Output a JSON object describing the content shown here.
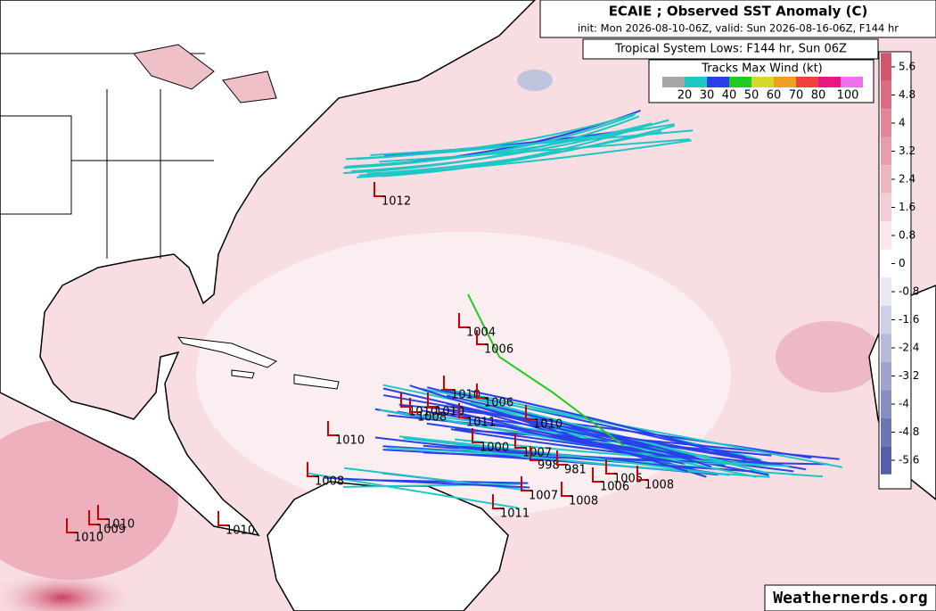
{
  "header": {
    "title": "ECAIE ; Observed SST Anomaly (C)",
    "subtitle": "init: Mon 2026-08-10-06Z, valid: Sun 2026-08-16-06Z, F144 hr"
  },
  "lows_legend": {
    "title": "Tropical System Lows: F144 hr, Sun 06Z"
  },
  "wind_legend": {
    "title": "Tracks Max Wind (kt)",
    "labels": [
      20,
      30,
      40,
      50,
      60,
      70,
      80,
      100
    ],
    "colors": [
      "#a6a6a6",
      "#1ec6c6",
      "#2a40e8",
      "#1fcc1f",
      "#d8d82a",
      "#f0a020",
      "#f04040",
      "#e81880",
      "#f070f0"
    ]
  },
  "colorbar": {
    "ticks": [
      5.6,
      4.8,
      4,
      3.2,
      2.4,
      1.6,
      0.8,
      0,
      -0.8,
      -1.6,
      -2.4,
      -3.2,
      -4,
      -4.8,
      -5.6
    ]
  },
  "lows": [
    "1012",
    "1004",
    "1006",
    "1010",
    "1006",
    "1010",
    "1010",
    "1008",
    "1011",
    "1010",
    "1010",
    "1000",
    "1007",
    "998",
    "981",
    "1005",
    "1008",
    "1006",
    "1008",
    "1007",
    "1008",
    "1011",
    "1010",
    "1010",
    "1009",
    "1010"
  ],
  "watermark": "Weathernerds.org"
}
